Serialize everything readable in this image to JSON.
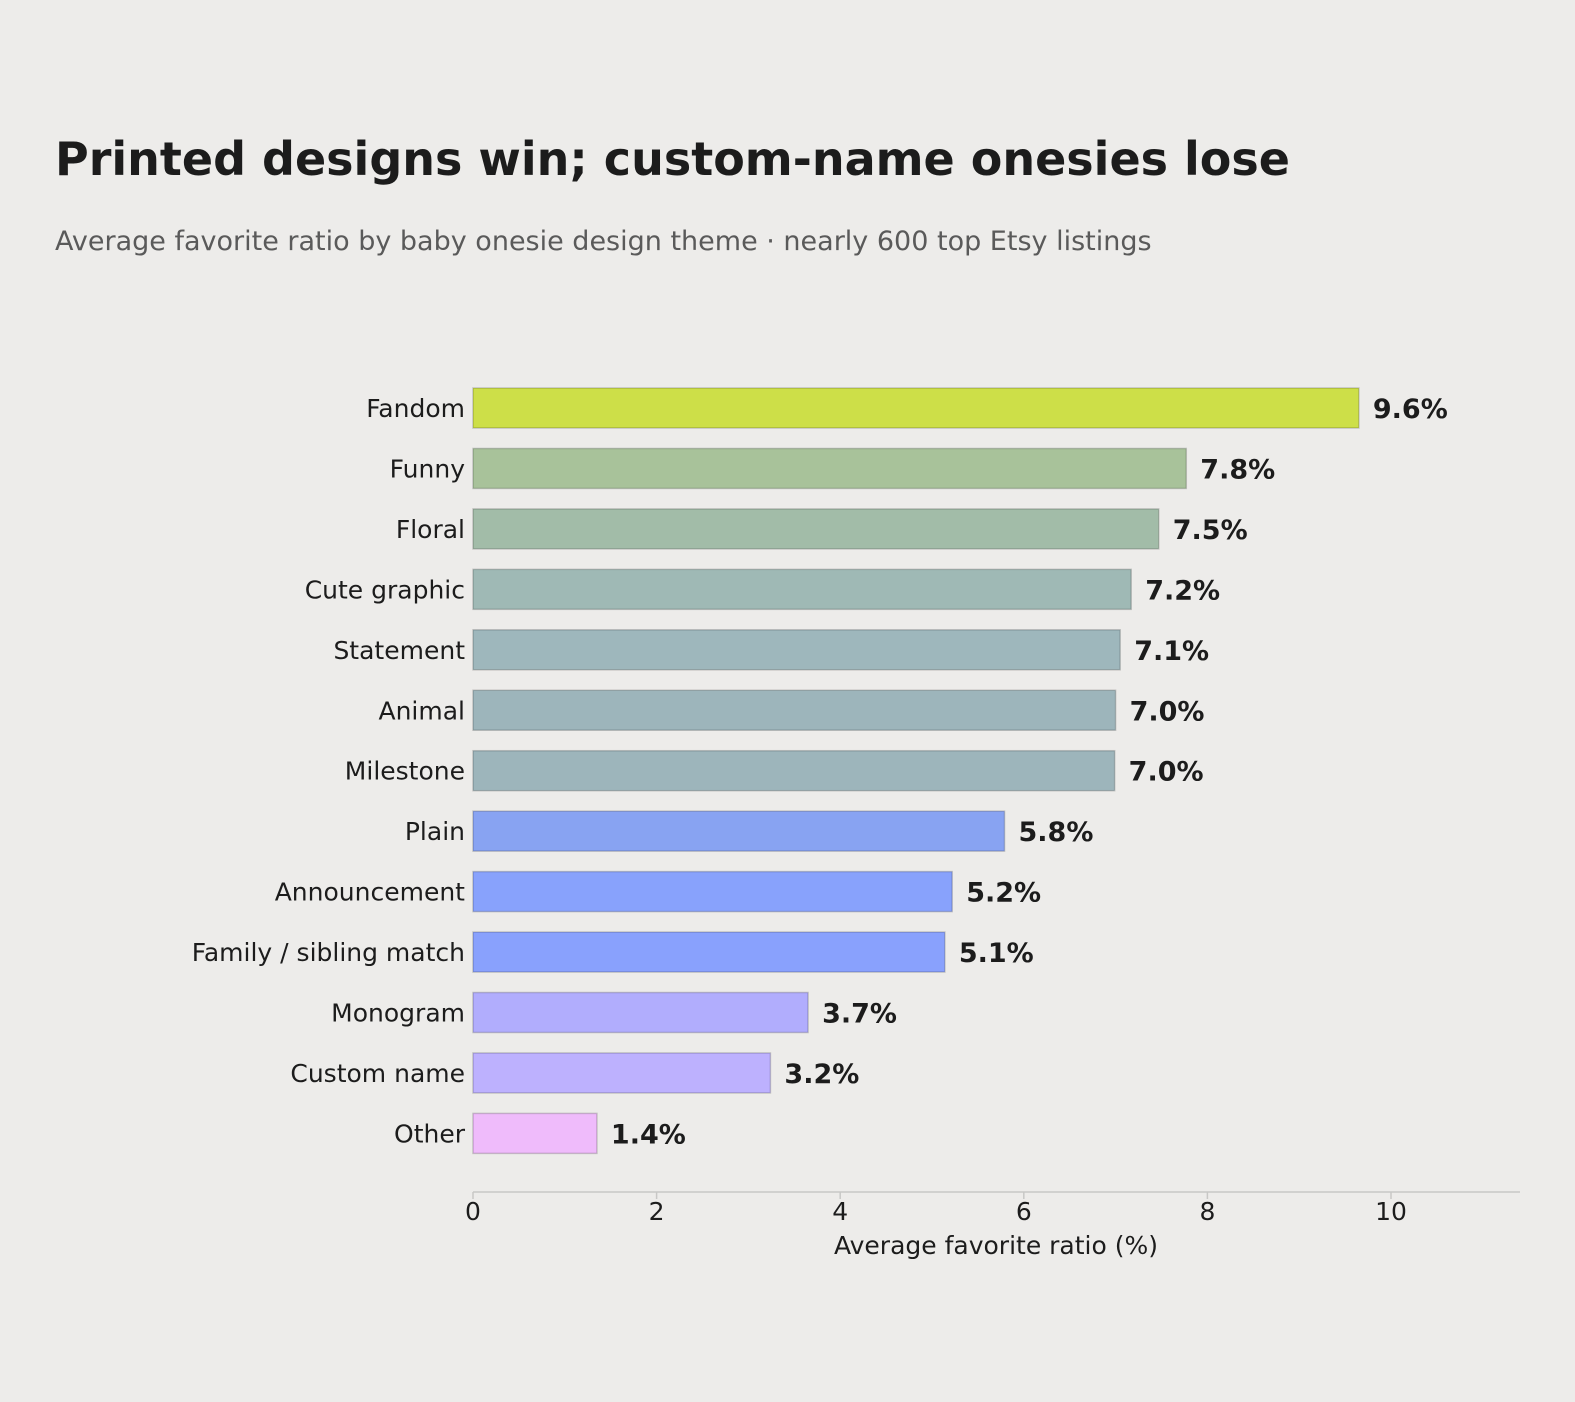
{
  "title": "Printed designs win; custom-name onesies lose",
  "subtitle": "Average favorite ratio by baby onesie design theme · nearly 600 top Etsy listings",
  "chart_data": {
    "type": "bar",
    "orientation": "horizontal",
    "title": "Printed designs win; custom-name onesies lose",
    "subtitle": "Average favorite ratio by baby onesie design theme · nearly 600 top Etsy listings",
    "xlabel": "Average favorite ratio (%)",
    "ylabel": "",
    "xlim": [
      0,
      11.4
    ],
    "xticks": [
      0,
      2,
      4,
      6,
      8,
      10
    ],
    "grid": false,
    "value_label_suffix": "%",
    "categories": [
      "Fandom",
      "Funny",
      "Floral",
      "Cute graphic",
      "Statement",
      "Animal",
      "Milestone",
      "Plain",
      "Announcement",
      "Family / sibling match",
      "Monogram",
      "Custom name",
      "Other"
    ],
    "values": [
      9.65,
      7.77,
      7.47,
      7.17,
      7.05,
      7.0,
      6.99,
      5.79,
      5.22,
      5.14,
      3.65,
      3.24,
      1.35
    ],
    "value_labels": [
      "9.6%",
      "7.8%",
      "7.5%",
      "7.2%",
      "7.1%",
      "7.0%",
      "7.0%",
      "5.8%",
      "5.2%",
      "5.1%",
      "3.7%",
      "3.2%",
      "1.4%"
    ],
    "colors": [
      "#cddf48",
      "#a8c29a",
      "#a2bca8",
      "#9fb9b5",
      "#9eb7bc",
      "#9db5bb",
      "#9db5bb",
      "#88a3f2",
      "#88a2fc",
      "#89a1fd",
      "#b1adfd",
      "#bdb1fe",
      "#efbbfb"
    ]
  }
}
